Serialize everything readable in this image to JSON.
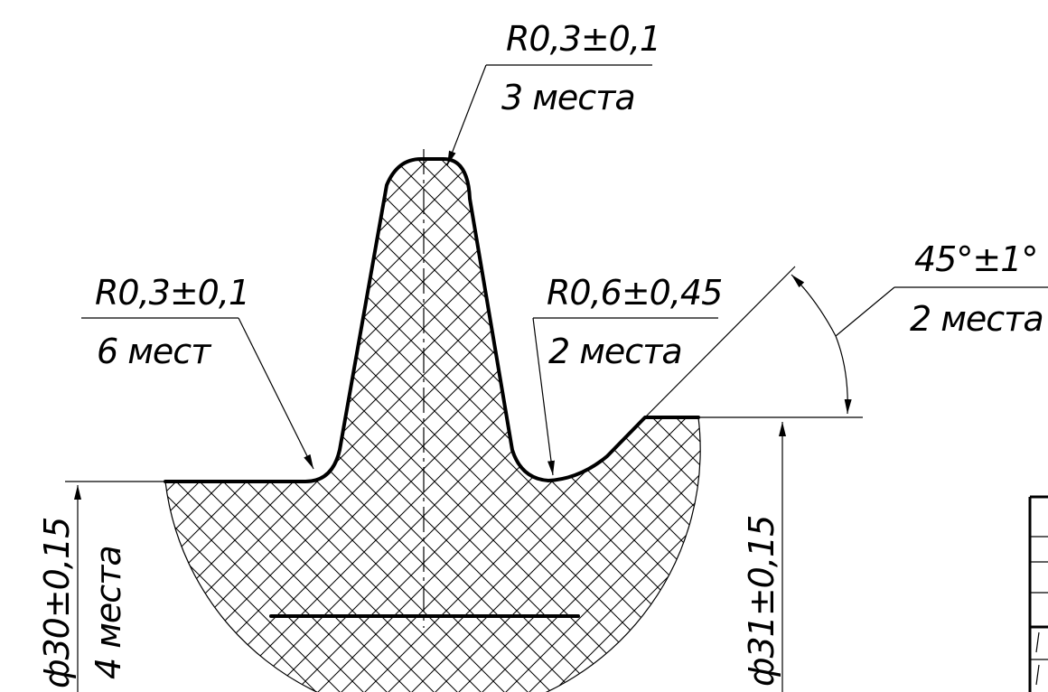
{
  "drawing": {
    "callouts": {
      "top_radius": {
        "value": "R0,3±0,1",
        "note": "3 места"
      },
      "left_radius": {
        "value": "R0,3±0,1",
        "note": "6 мест"
      },
      "right_radius": {
        "value": "R0,6±0,45",
        "note": "2 места"
      },
      "angle": {
        "value": "45°±1°",
        "note": "2 места"
      }
    },
    "dimensions": {
      "left_diameter": {
        "value": "ф30±0,15",
        "note": "4 места"
      },
      "right_diameter": {
        "value": "ф31±0,15"
      }
    }
  }
}
